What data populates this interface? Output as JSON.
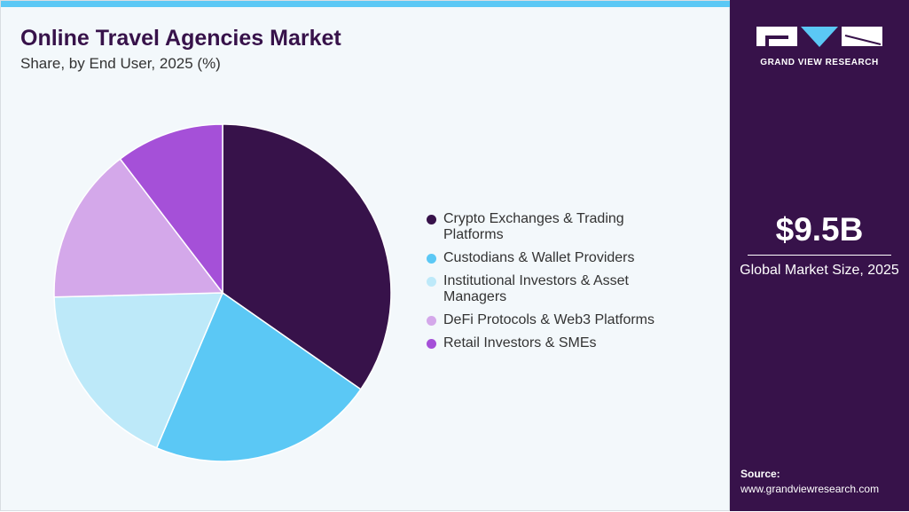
{
  "header": {
    "title": "Online Travel Agencies Market",
    "subtitle": "Share, by End User, 2025 (%)"
  },
  "chart_data": {
    "type": "pie",
    "title": "Online Travel Agencies Market",
    "subtitle": "Share, by End User, 2025 (%)",
    "legend_position": "right",
    "categories": [
      "Crypto Exchanges & Trading Platforms",
      "Custodians & Wallet Providers",
      "Institutional Investors & Asset Managers",
      "DeFi Protocols & Web3 Platforms",
      "Retail Investors & SMEs"
    ],
    "values": [
      34.7,
      21.7,
      18.2,
      15.0,
      10.4
    ],
    "colors": [
      "#37124a",
      "#5bc8f5",
      "#bde9f9",
      "#d4a8ea",
      "#a550d8"
    ]
  },
  "sidebar": {
    "logo_text": "GRAND VIEW RESEARCH",
    "market_size": "$9.5B",
    "market_size_label": "Global Market Size, 2025",
    "source_label": "Source:",
    "source_url": "www.grandviewresearch.com"
  }
}
